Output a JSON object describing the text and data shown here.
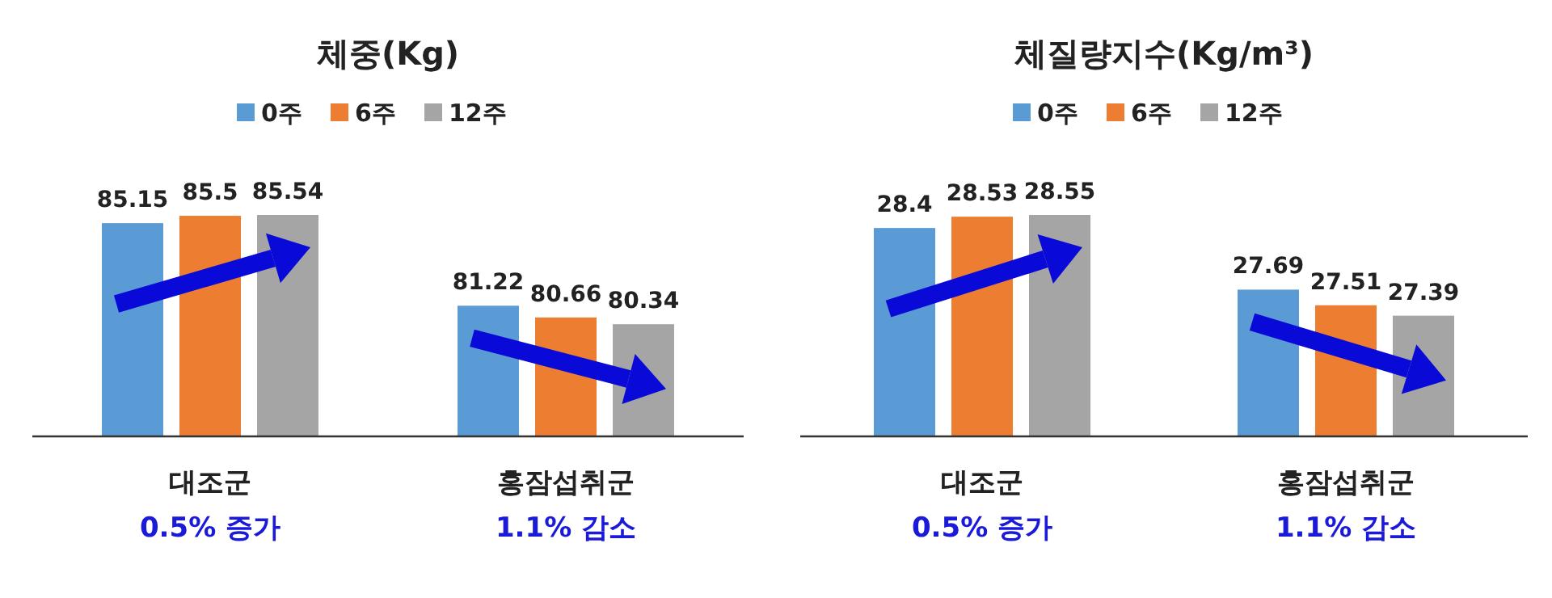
{
  "chart_data": [
    {
      "type": "bar",
      "title": "체중(Kg)",
      "categories": [
        "대조군",
        "홍잠섭취군"
      ],
      "series": [
        {
          "name": "0주",
          "color": "#5b9bd5",
          "values": [
            85.15,
            81.22
          ]
        },
        {
          "name": "6주",
          "color": "#ed7d31",
          "values": [
            85.5,
            80.66
          ]
        },
        {
          "name": "12주",
          "color": "#a5a5a5",
          "values": [
            85.54,
            80.34
          ]
        }
      ],
      "ylim": [
        75,
        85.54
      ],
      "data_labels": true,
      "legend": "top",
      "annotations": [
        "0.5% 증가",
        "1.1% 감소"
      ]
    },
    {
      "type": "bar",
      "title": "체질량지수(Kg/m³)",
      "categories": [
        "대조군",
        "홍잠섭취군"
      ],
      "series": [
        {
          "name": "0주",
          "color": "#5b9bd5",
          "values": [
            28.4,
            27.69
          ]
        },
        {
          "name": "6주",
          "color": "#ed7d31",
          "values": [
            28.53,
            27.51
          ]
        },
        {
          "name": "12주",
          "color": "#a5a5a5",
          "values": [
            28.55,
            27.39
          ]
        }
      ],
      "ylim": [
        26,
        28.55
      ],
      "data_labels": true,
      "legend": "top",
      "annotations": [
        "0.5% 증가",
        "1.1% 감소"
      ]
    }
  ]
}
